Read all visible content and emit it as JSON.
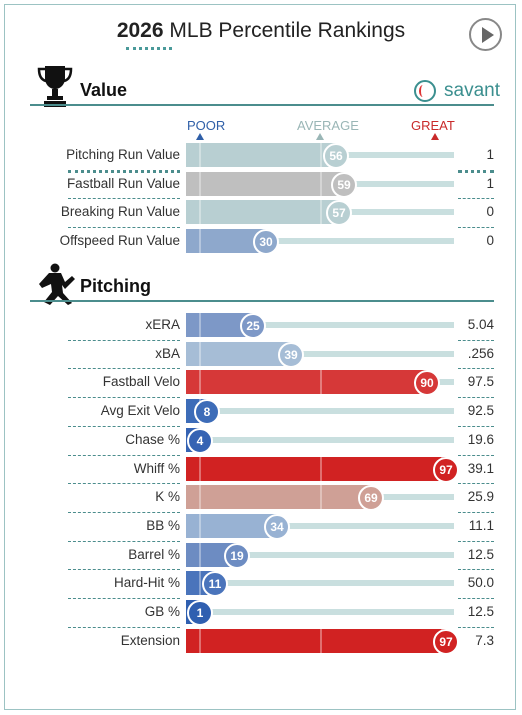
{
  "header": {
    "year": "2026",
    "title": "MLB Percentile Rankings",
    "play_icon": "play-icon"
  },
  "brand": {
    "name": "savant",
    "icon": "baseball-icon",
    "color": "#3b8f8f"
  },
  "scale": {
    "poor": "POOR",
    "average": "AVERAGE",
    "great": "GREAT"
  },
  "colors": {
    "accent": "#4b8d8d",
    "poor": "#2f63a8",
    "great": "#d22d2d",
    "average": "#b9b9b9"
  },
  "sections": {
    "value": {
      "title": "Value",
      "icon": "trophy-icon",
      "rows": [
        {
          "label": "Pitching Run Value",
          "percentile": 56,
          "value": "1",
          "color": "#b8cfd2"
        },
        {
          "label": "Fastball Run Value",
          "percentile": 59,
          "value": "1",
          "color": "#bfbfbf"
        },
        {
          "label": "Breaking Run Value",
          "percentile": 57,
          "value": "0",
          "color": "#b8cfd2"
        },
        {
          "label": "Offspeed Run Value",
          "percentile": 30,
          "value": "0",
          "color": "#8ea8cc"
        }
      ]
    },
    "pitching": {
      "title": "Pitching",
      "icon": "pitcher-icon",
      "rows": [
        {
          "label": "xERA",
          "percentile": 25,
          "value": "5.04",
          "color": "#7d98c7"
        },
        {
          "label": "xBA",
          "percentile": 39,
          "value": ".256",
          "color": "#a6bdd6"
        },
        {
          "label": "Fastball Velo",
          "percentile": 90,
          "value": "97.5",
          "color": "#d63838"
        },
        {
          "label": "Avg Exit Velo",
          "percentile": 8,
          "value": "92.5",
          "color": "#3d6cb8"
        },
        {
          "label": "Chase %",
          "percentile": 4,
          "value": "19.6",
          "color": "#3563b3"
        },
        {
          "label": "Whiff %",
          "percentile": 97,
          "value": "39.1",
          "color": "#d12222"
        },
        {
          "label": "K %",
          "percentile": 69,
          "value": "25.9",
          "color": "#cfa096"
        },
        {
          "label": "BB %",
          "percentile": 34,
          "value": "11.1",
          "color": "#98b2d3"
        },
        {
          "label": "Barrel %",
          "percentile": 19,
          "value": "12.5",
          "color": "#6d8cc2"
        },
        {
          "label": "Hard-Hit %",
          "percentile": 11,
          "value": "50.0",
          "color": "#4a74bb"
        },
        {
          "label": "GB %",
          "percentile": 1,
          "value": "12.5",
          "color": "#2f5fb0"
        },
        {
          "label": "Extension",
          "percentile": 97,
          "value": "7.3",
          "color": "#d12222"
        }
      ]
    }
  }
}
